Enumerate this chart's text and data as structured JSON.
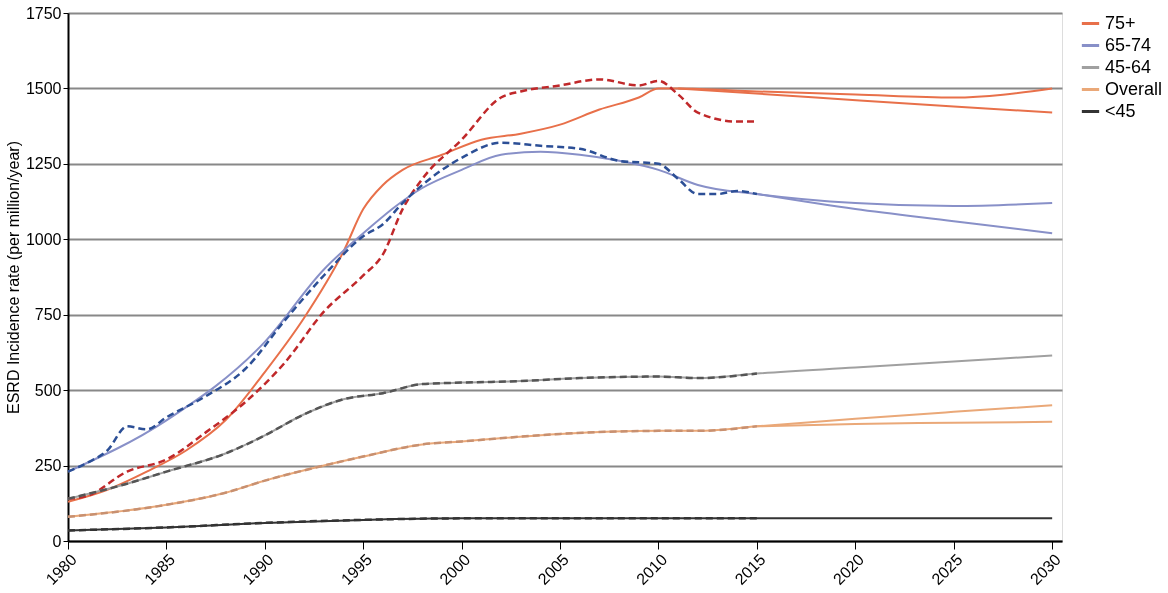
{
  "chart_data": {
    "type": "line",
    "ylabel": "ESRD Incidence rate (per million/year)",
    "xlim": [
      1980,
      2030.5
    ],
    "ylim": [
      0,
      1750
    ],
    "xticks": [
      1980,
      1985,
      1990,
      1995,
      2000,
      2005,
      2010,
      2015,
      2020,
      2025,
      2030
    ],
    "yticks": [
      0,
      250,
      500,
      750,
      1000,
      1250,
      1500,
      1750
    ],
    "grid": "y",
    "legend": "right",
    "marker": "none",
    "series": [
      {
        "name": "75+",
        "color": "#e8704a",
        "line_style": "solid",
        "x": [
          1980,
          1982,
          1984,
          1986,
          1988,
          1990,
          1992,
          1994,
          1995,
          1996,
          1997,
          1999,
          2001,
          2003,
          2005,
          2007,
          2009,
          2010,
          2011,
          2015,
          2020,
          2025,
          2030
        ],
        "values": [
          130,
          170,
          230,
          300,
          400,
          560,
          740,
          960,
          1100,
          1180,
          1230,
          1280,
          1330,
          1350,
          1380,
          1430,
          1470,
          1500,
          1500,
          1490,
          1480,
          1470,
          1500
        ]
      },
      {
        "name": null,
        "color": "#e8704a",
        "line_style": "solid",
        "x": [
          2011,
          2018,
          2025,
          2030
        ],
        "values": [
          1500,
          1470,
          1440,
          1420
        ]
      },
      {
        "name": null,
        "color": "#c0282a",
        "line_style": "dashed",
        "x": [
          1980,
          1981,
          1983,
          1985,
          1987,
          1989,
          1991,
          1993,
          1995,
          1996,
          1997,
          1998,
          2000,
          2002,
          2003,
          2005,
          2007,
          2009,
          2010,
          2011,
          2012,
          2014,
          2015
        ],
        "values": [
          140,
          150,
          230,
          270,
          360,
          460,
          590,
          760,
          880,
          950,
          1100,
          1200,
          1330,
          1470,
          1490,
          1510,
          1530,
          1510,
          1525,
          1480,
          1420,
          1390,
          1390
        ]
      },
      {
        "name": "65-74",
        "color": "#8890c8",
        "line_style": "solid",
        "x": [
          1980,
          1985,
          1990,
          1993,
          1995,
          1998,
          2000,
          2002,
          2004,
          2006,
          2008,
          2010,
          2012,
          2015,
          2020,
          2025,
          2030
        ],
        "values": [
          230,
          400,
          660,
          900,
          1020,
          1170,
          1230,
          1280,
          1290,
          1280,
          1260,
          1230,
          1180,
          1150,
          1120,
          1110,
          1120
        ]
      },
      {
        "name": null,
        "color": "#8890c8",
        "line_style": "solid",
        "x": [
          2015,
          2020,
          2025,
          2030
        ],
        "values": [
          1150,
          1100,
          1060,
          1020
        ]
      },
      {
        "name": null,
        "color": "#2c4f96",
        "line_style": "dashed",
        "x": [
          1980,
          1981,
          1982,
          1983,
          1984,
          1985,
          1987,
          1989,
          1991,
          1993,
          1995,
          1996,
          1997,
          1998,
          2000,
          2002,
          2004,
          2006,
          2008,
          2010,
          2011,
          2012,
          2013,
          2014,
          2015
        ],
        "values": [
          230,
          260,
          300,
          380,
          370,
          410,
          480,
          570,
          730,
          880,
          1010,
          1050,
          1120,
          1180,
          1270,
          1320,
          1310,
          1300,
          1260,
          1250,
          1200,
          1150,
          1150,
          1160,
          1150
        ]
      },
      {
        "name": "45-64",
        "color": "#a0a0a0",
        "line_style": "solid",
        "x": [
          1980,
          1983,
          1985,
          1988,
          1990,
          1992,
          1994,
          1996,
          1998,
          2000,
          2003,
          2006,
          2010,
          2012,
          2015,
          2020,
          2025,
          2030
        ],
        "values": [
          140,
          190,
          230,
          290,
          350,
          420,
          470,
          490,
          520,
          525,
          530,
          540,
          545,
          540,
          555,
          575,
          595,
          615
        ]
      },
      {
        "name": null,
        "color": "#555555",
        "line_style": "dashed",
        "x": [
          1980,
          1983,
          1985,
          1988,
          1990,
          1992,
          1994,
          1996,
          1998,
          2000,
          2003,
          2006,
          2010,
          2012,
          2015
        ],
        "values": [
          140,
          190,
          230,
          290,
          350,
          420,
          470,
          490,
          520,
          525,
          530,
          540,
          545,
          540,
          555
        ]
      },
      {
        "name": "Overall",
        "color": "#eaa878",
        "line_style": "solid",
        "x": [
          1980,
          1985,
          1988,
          1990,
          1993,
          1995,
          1998,
          2000,
          2005,
          2010,
          2012,
          2015,
          2020,
          2025,
          2030
        ],
        "values": [
          80,
          120,
          160,
          200,
          250,
          280,
          320,
          330,
          355,
          365,
          365,
          380,
          405,
          428,
          450
        ]
      },
      {
        "name": null,
        "color": "#eaa878",
        "line_style": "solid",
        "x": [
          2015,
          2020,
          2025,
          2030
        ],
        "values": [
          380,
          388,
          392,
          395
        ]
      },
      {
        "name": null,
        "color": "#c89070",
        "line_style": "dashed",
        "x": [
          1980,
          1985,
          1988,
          1990,
          1993,
          1995,
          1998,
          2000,
          2005,
          2010,
          2012,
          2015
        ],
        "values": [
          80,
          120,
          160,
          200,
          250,
          280,
          320,
          330,
          355,
          365,
          365,
          380
        ]
      },
      {
        "name": "<45",
        "color": "#333333",
        "line_style": "solid",
        "x": [
          1980,
          1985,
          1990,
          1995,
          2000,
          2005,
          2010,
          2015,
          2020,
          2025,
          2030
        ],
        "values": [
          35,
          45,
          60,
          70,
          75,
          75,
          75,
          75,
          75,
          75,
          75
        ]
      },
      {
        "name": null,
        "color": "#333333",
        "line_style": "dashed",
        "x": [
          1980,
          1985,
          1990,
          1995,
          2000,
          2005,
          2010,
          2015
        ],
        "values": [
          35,
          45,
          60,
          70,
          75,
          75,
          75,
          75
        ]
      }
    ]
  }
}
